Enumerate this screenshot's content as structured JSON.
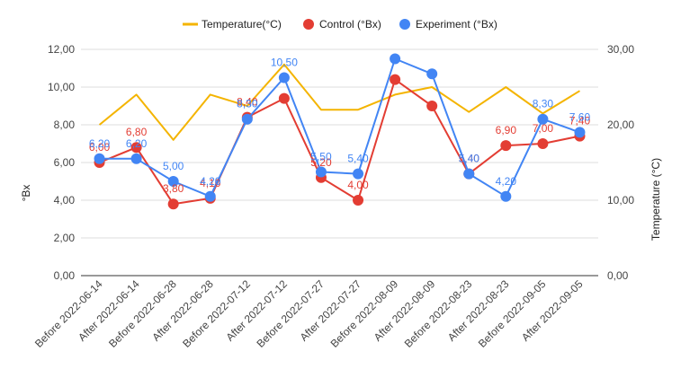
{
  "chart_data": {
    "type": "line",
    "categories": [
      "Before 2022-06-14",
      "After 2022-06-14",
      "Before 2022-06-28",
      "After 2022-06-28",
      "Before 2022-07-12",
      "After 2022-07-12",
      "Before 2022-07-27",
      "After 2022-07-27",
      "Before 2022-08-09",
      "After 2022-08-09",
      "Before 2022-08-23",
      "After 2022-08-23",
      "Before 2022-09-05",
      "After 2022-09-05"
    ],
    "ylabel": "°Bx",
    "y2label": "Temperature (°C)",
    "ylim": [
      0,
      12
    ],
    "y_ticks": [
      "0,00",
      "2,00",
      "4,00",
      "6,00",
      "8,00",
      "10,00",
      "12,00"
    ],
    "y2lim": [
      0,
      30
    ],
    "y2_ticks": [
      "0,00",
      "10,00",
      "20,00",
      "30,00"
    ],
    "grid": true,
    "legend_position": "top",
    "series": [
      {
        "name": "Temperature(°C)",
        "axis": "right",
        "color": "#f4b400",
        "marker": "none",
        "values": [
          20,
          24,
          18,
          24,
          22.5,
          28,
          22,
          22,
          24,
          25,
          21.7,
          25,
          21.5,
          24.5
        ]
      },
      {
        "name": "Control (°Bx)",
        "axis": "left",
        "color": "#e33d33",
        "marker": "circle",
        "values": [
          6.0,
          6.8,
          3.8,
          4.1,
          8.4,
          9.4,
          5.2,
          4.0,
          10.4,
          9.0,
          5.4,
          6.9,
          7.0,
          7.4
        ],
        "labels": [
          "6,00",
          "6,80",
          "3,80",
          "4,10",
          "8,40",
          "",
          "5,20",
          "4,00",
          "",
          "",
          "5,40",
          "6,90",
          "7,00",
          "7,40"
        ]
      },
      {
        "name": "Experiment (°Bx)",
        "axis": "left",
        "color": "#4285f4",
        "marker": "circle",
        "values": [
          6.2,
          6.2,
          5.0,
          4.2,
          8.3,
          10.5,
          5.5,
          5.4,
          11.5,
          10.7,
          5.4,
          4.2,
          8.3,
          7.6
        ],
        "labels": [
          "6,20",
          "6,20",
          "5,00",
          "4,20",
          "8,30",
          "10,50",
          "5,50",
          "5,40",
          "",
          "",
          "5,40",
          "4,20",
          "8,30",
          "7,60"
        ]
      }
    ]
  }
}
